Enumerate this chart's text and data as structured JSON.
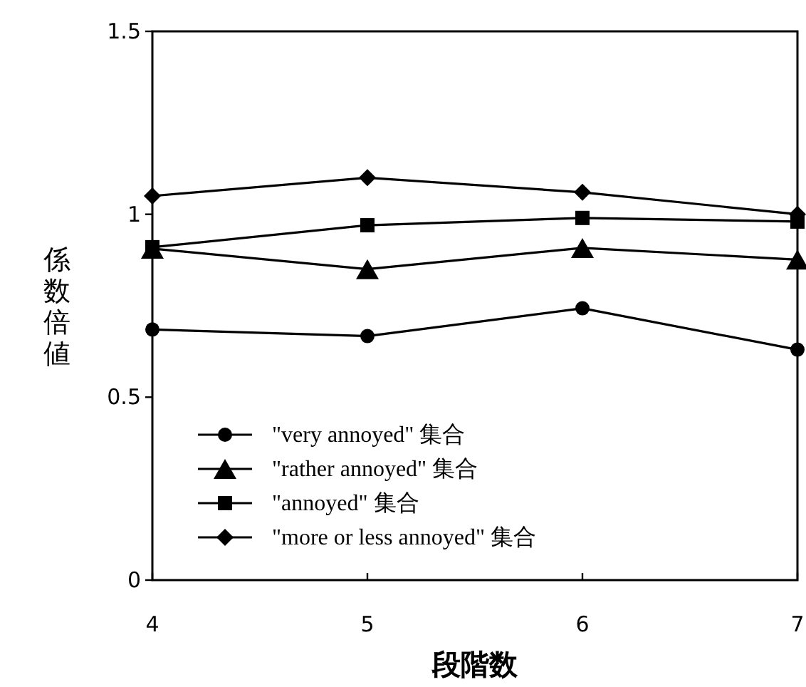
{
  "chart_data": {
    "type": "line",
    "xlabel": "段階数",
    "ylabel": "係数倍値",
    "x": [
      4,
      5,
      6,
      7
    ],
    "series": [
      {
        "name": "\"very annoyed\" 集合",
        "color": "#000000",
        "marker": "circle",
        "values": [
          0.685,
          0.667,
          0.743,
          0.63
        ]
      },
      {
        "name": "\"rather annoyed\" 集合",
        "color": "#000000",
        "marker": "triangle",
        "values": [
          0.906,
          0.85,
          0.908,
          0.876
        ]
      },
      {
        "name": "\"annoyed\" 集合",
        "color": "#000000",
        "marker": "square",
        "values": [
          0.91,
          0.97,
          0.99,
          0.98
        ]
      },
      {
        "name": "\"more or less annoyed\" 集合",
        "color": "#000000",
        "marker": "diamond",
        "values": [
          1.05,
          1.1,
          1.06,
          1.0
        ]
      }
    ],
    "xlim": [
      4,
      7
    ],
    "xticks": [
      4,
      5,
      6,
      7
    ],
    "ylim": [
      0,
      1.5
    ],
    "yticks": [
      0,
      0.5,
      1,
      1.5
    ],
    "grid": false,
    "legend": "bottom left",
    "line_style": "solid"
  }
}
